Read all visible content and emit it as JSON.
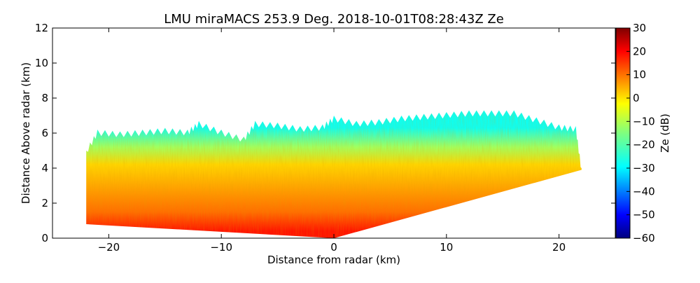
{
  "chart_data": {
    "type": "heatmap",
    "title": "LMU miraMACS 253.9 Deg. 2018-10-01T08:28:43Z  Ze",
    "xlabel": "Distance from radar (km)",
    "ylabel": "Distance Above radar  (km)",
    "xlim": [
      -25,
      25
    ],
    "ylim": [
      0,
      12
    ],
    "x_ticks": [
      -20,
      -10,
      0,
      10,
      20
    ],
    "x_tick_labels": [
      "−20",
      "−10",
      "0",
      "10",
      "20"
    ],
    "y_ticks": [
      0,
      2,
      4,
      6,
      8,
      10,
      12
    ],
    "y_tick_labels": [
      "0",
      "2",
      "4",
      "6",
      "8",
      "10",
      "12"
    ],
    "colorbar": {
      "label": "Ze (dB)",
      "range": [
        -60,
        30
      ],
      "ticks": [
        30,
        20,
        10,
        0,
        -10,
        -20,
        -30,
        -40,
        -50,
        -60
      ],
      "tick_labels": [
        "30",
        "20",
        "10",
        "0",
        "−10",
        "−20",
        "−30",
        "−40",
        "−50",
        "−60"
      ],
      "colormap": "jet"
    },
    "echo_region": {
      "left_edge_x": -22,
      "right_edge_x": 22,
      "radar_position": [
        0,
        0
      ],
      "left_lower_boundary": [
        [
          -22,
          0.8
        ],
        [
          0,
          0
        ]
      ],
      "right_lower_boundary": [
        [
          0,
          0
        ],
        [
          22,
          3.9
        ]
      ],
      "cloud_top_profile": [
        [
          -22,
          5.0
        ],
        [
          -21,
          6.1
        ],
        [
          -19,
          6.0
        ],
        [
          -17,
          6.1
        ],
        [
          -15,
          6.2
        ],
        [
          -13,
          6.1
        ],
        [
          -12,
          6.6
        ],
        [
          -10,
          6.1
        ],
        [
          -8,
          5.7
        ],
        [
          -7,
          6.6
        ],
        [
          -5,
          6.5
        ],
        [
          -3,
          6.3
        ],
        [
          -1,
          6.4
        ],
        [
          0,
          6.9
        ],
        [
          2,
          6.6
        ],
        [
          4,
          6.7
        ],
        [
          6,
          6.9
        ],
        [
          8,
          7.0
        ],
        [
          10,
          7.1
        ],
        [
          12,
          7.2
        ],
        [
          14,
          7.2
        ],
        [
          16,
          7.2
        ],
        [
          18,
          6.8
        ],
        [
          20,
          6.4
        ],
        [
          21.5,
          6.3
        ],
        [
          22,
          3.9
        ]
      ],
      "reflectivity_layers": [
        {
          "height_km": 0.4,
          "ze_db": 17
        },
        {
          "height_km": 1.5,
          "ze_db": 9
        },
        {
          "height_km": 3.0,
          "ze_db": 4
        },
        {
          "height_km": 4.2,
          "ze_db": 0
        },
        {
          "height_km": 5.2,
          "ze_db": -12
        },
        {
          "height_km": 6.3,
          "ze_db": -25
        }
      ]
    }
  }
}
